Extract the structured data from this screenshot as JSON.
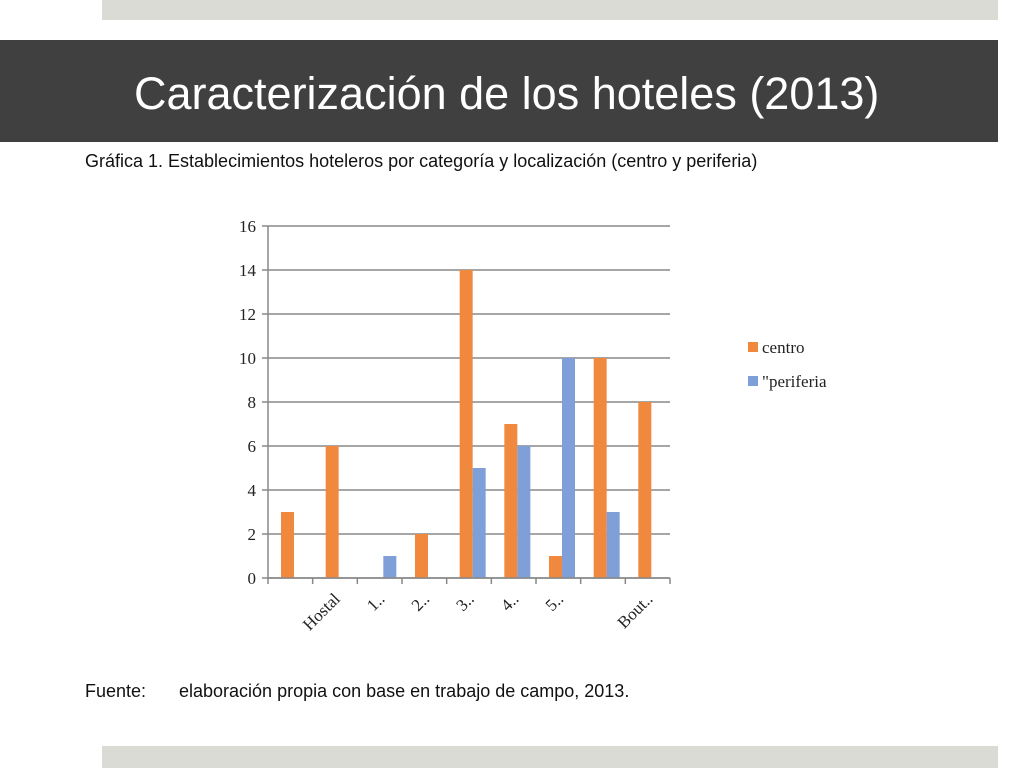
{
  "slide_title": "Caracterización de los hoteles (2013)",
  "caption": "Gráfica 1. Establecimientos hoteleros por categoría y localización (centro y periferia)",
  "source_label": "Fuente:",
  "source_text": "elaboración propia con base en trabajo de campo, 2013.",
  "chart_data": {
    "type": "bar",
    "categories": [
      null,
      "Hostal",
      "1..",
      "2..",
      "3..",
      "4..",
      "5..",
      null,
      "Bout.."
    ],
    "series": [
      {
        "name": "centro",
        "color": "#f0883e",
        "values": [
          3,
          6,
          0,
          2,
          14,
          7,
          1,
          10,
          8
        ]
      },
      {
        "name": "\"periferia",
        "color": "#7f9fd9",
        "values": [
          0,
          0,
          1,
          0,
          5,
          6,
          10,
          3,
          0
        ]
      }
    ],
    "ylim": [
      0,
      16
    ],
    "yticks": [
      0,
      2,
      4,
      6,
      8,
      10,
      12,
      14,
      16
    ],
    "grid": true,
    "legend": "right"
  }
}
